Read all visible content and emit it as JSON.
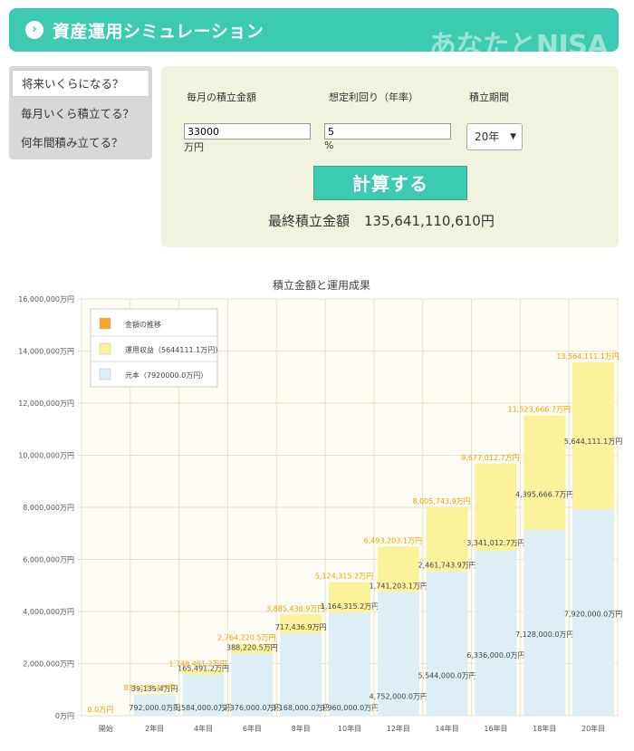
{
  "header": {
    "title": "資産運用シミュレーション",
    "brand": "あなたとNISA",
    "arrow_icon": "chevron-right-icon"
  },
  "sidebar": {
    "items": [
      {
        "label": "将来いくらになる？",
        "active": true
      },
      {
        "label": "毎月いくら積立てる？",
        "active": false
      },
      {
        "label": "何年間積み立てる？",
        "active": false
      }
    ]
  },
  "form": {
    "monthly_label": "毎月の積立金額",
    "rate_label": "想定利回り（年率）",
    "period_label": "積立期間",
    "monthly_value": "33000",
    "monthly_unit": "万円",
    "rate_value": "5",
    "rate_unit": "%",
    "period_value": "20年",
    "calc_label": "計算する",
    "result_label": "最終積立金額",
    "result_value": "135,641,110,610円"
  },
  "colors": {
    "accent": "#3ccbb0",
    "principal": "#ddeef5",
    "gain": "#fdf29c",
    "total_label": "#f0a000"
  },
  "chart_data": {
    "type": "bar",
    "title": "積立金額と運用成果",
    "categories": [
      "開始",
      "2年目",
      "4年目",
      "6年目",
      "8年目",
      "10年目",
      "12年目",
      "14年目",
      "16年目",
      "18年目",
      "20年目"
    ],
    "ylim": [
      0,
      16000000
    ],
    "yticks": [
      "0万円",
      "2,000,000万円",
      "4,000,000万円",
      "6,000,000万円",
      "8,000,000万円",
      "10,000,000万円",
      "12,000,000万円",
      "14,000,000万円",
      "16,000,000万円"
    ],
    "legend": [
      {
        "label": "金額の推移",
        "color": "#f5a623"
      },
      {
        "label": "運用収益（5644111.1万円）",
        "color": "#fdf29c"
      },
      {
        "label": "元本（7920000.0万円）",
        "color": "#ddeef5"
      }
    ],
    "legend_position": "top-left",
    "series": [
      {
        "name": "元本",
        "values": [
          0,
          792000,
          1584000,
          2376000,
          3168000,
          3960000,
          4752000,
          5544000,
          6336000,
          7128000,
          7920000
        ],
        "labels": [
          "",
          "792,000.0万円",
          "1,584,000.0万円",
          "2,376,000.0万円",
          "3,168,000.0万円",
          "3,960,000.0万円",
          "4,752,000.0万円",
          "5,544,000.0万円",
          "6,336,000.0万円",
          "7,128,000.0万円",
          "7,920,000.0万円"
        ]
      },
      {
        "name": "運用収益",
        "values": [
          0,
          39135.4,
          165491.2,
          388220.5,
          717436.9,
          1164315.2,
          1741203.1,
          2461743.9,
          3341012.7,
          4395666.7,
          5644111.1
        ],
        "labels": [
          "",
          "39,135.4万円",
          "165,491.2万円",
          "388,220.5万円",
          "717,436.9万円",
          "1,164,315.2万円",
          "1,741,203.1万円",
          "2,461,743.9万円",
          "3,341,012.7万円",
          "4,395,666.7万円",
          "5,644,111.1万円"
        ]
      }
    ],
    "totals": [
      "0.0万円",
      "831,135.4万円",
      "1,749,491.2万円",
      "2,764,220.5万円",
      "3,885,436.9万円",
      "5,124,315.2万円",
      "6,493,203.1万円",
      "8,005,743.9万円",
      "9,677,012.7万円",
      "11,523,666.7万円",
      "13,564,111.1万円"
    ],
    "total_values": [
      0,
      831135.4,
      1749491.2,
      2764220.5,
      3885436.9,
      5124315.2,
      6493203.1,
      8005743.9,
      9677012.7,
      11523666.7,
      13564111.1
    ]
  }
}
